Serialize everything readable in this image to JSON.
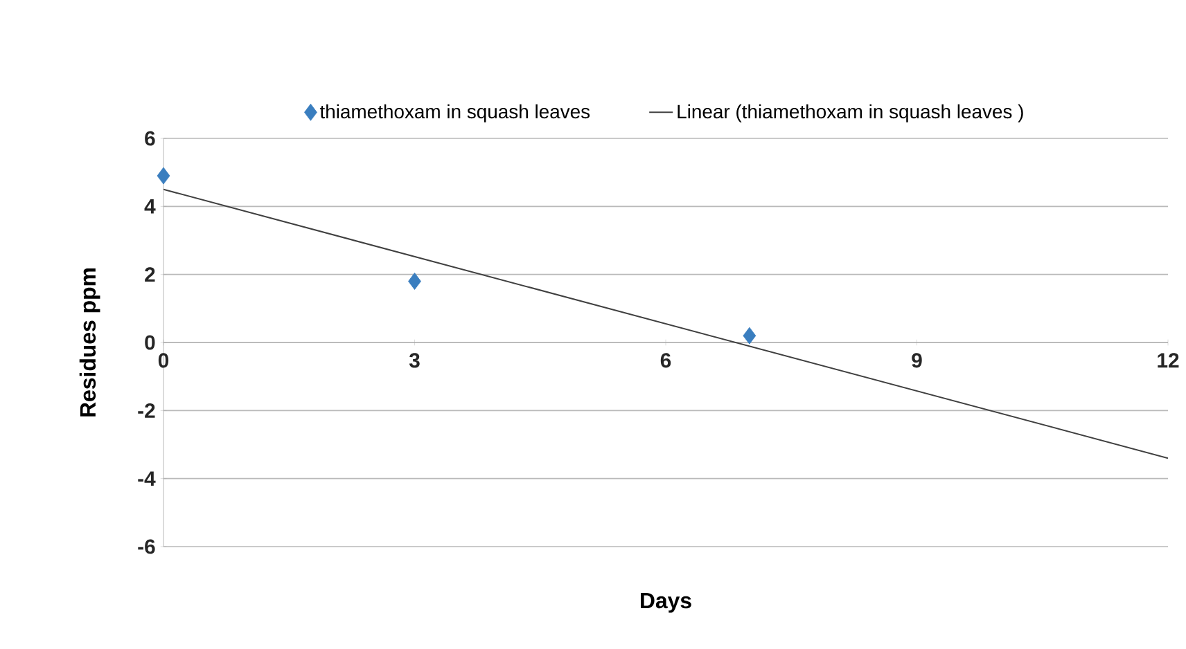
{
  "chart_data": {
    "type": "scatter",
    "xlabel": "Days",
    "ylabel": "Residues  ppm",
    "series": [
      {
        "name": "thiamethoxam in squash leaves",
        "type": "scatter",
        "color": "#3a7ebf",
        "marker": "diamond",
        "x": [
          0,
          3,
          7
        ],
        "values": [
          4.9,
          1.8,
          0.2
        ]
      },
      {
        "name": "Linear (thiamethoxam in squash leaves )",
        "type": "line",
        "color": "#404040",
        "marker": "none",
        "line_style": "solid",
        "x": [
          0,
          12
        ],
        "values": [
          4.5,
          -3.4
        ]
      }
    ],
    "xlim": [
      0,
      12
    ],
    "xticks": [
      0,
      3,
      6,
      9,
      12
    ],
    "ylim": [
      -6,
      6
    ],
    "yticks": [
      -6,
      -4,
      -2,
      0,
      2,
      4,
      6
    ],
    "grid": "y",
    "legend": "top"
  }
}
